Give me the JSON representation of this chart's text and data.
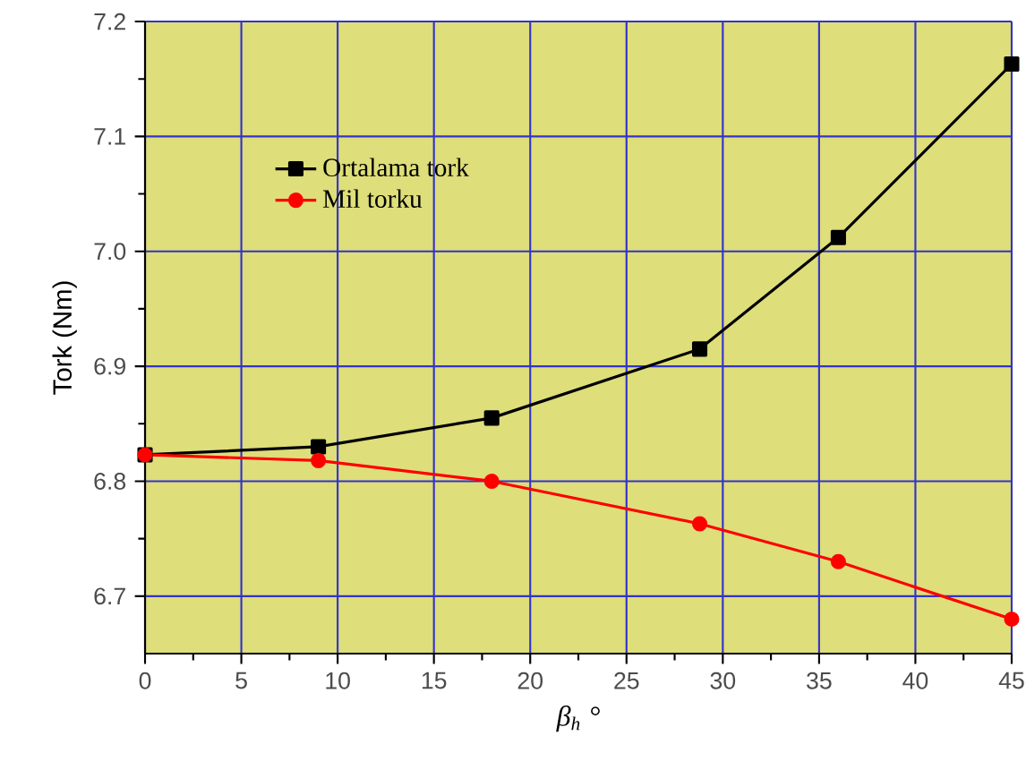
{
  "chart_data": {
    "type": "line",
    "xlabel": "β$_{h}$ °",
    "ylabel": "Tork (Nm)",
    "x": [
      0,
      9,
      18,
      28.8,
      36,
      45
    ],
    "series": [
      {
        "name": "Ortalama tork",
        "color": "#000000",
        "marker": "square",
        "values": [
          6.823,
          6.83,
          6.855,
          6.915,
          7.012,
          7.163
        ]
      },
      {
        "name": "Mil torku",
        "color": "#ff0000",
        "marker": "circle",
        "values": [
          6.823,
          6.818,
          6.8,
          6.763,
          6.73,
          6.68
        ]
      }
    ],
    "xlim": [
      0,
      45
    ],
    "xticks": [
      0,
      5,
      10,
      15,
      20,
      25,
      30,
      35,
      40,
      45
    ],
    "ylim": [
      6.65,
      7.2
    ],
    "yticks": [
      6.7,
      6.8,
      6.9,
      {
        "value": 7.0,
        "label": "7.0"
      },
      7.1,
      7.2
    ],
    "grid": true,
    "legend": "top left",
    "line_style": "solid"
  }
}
